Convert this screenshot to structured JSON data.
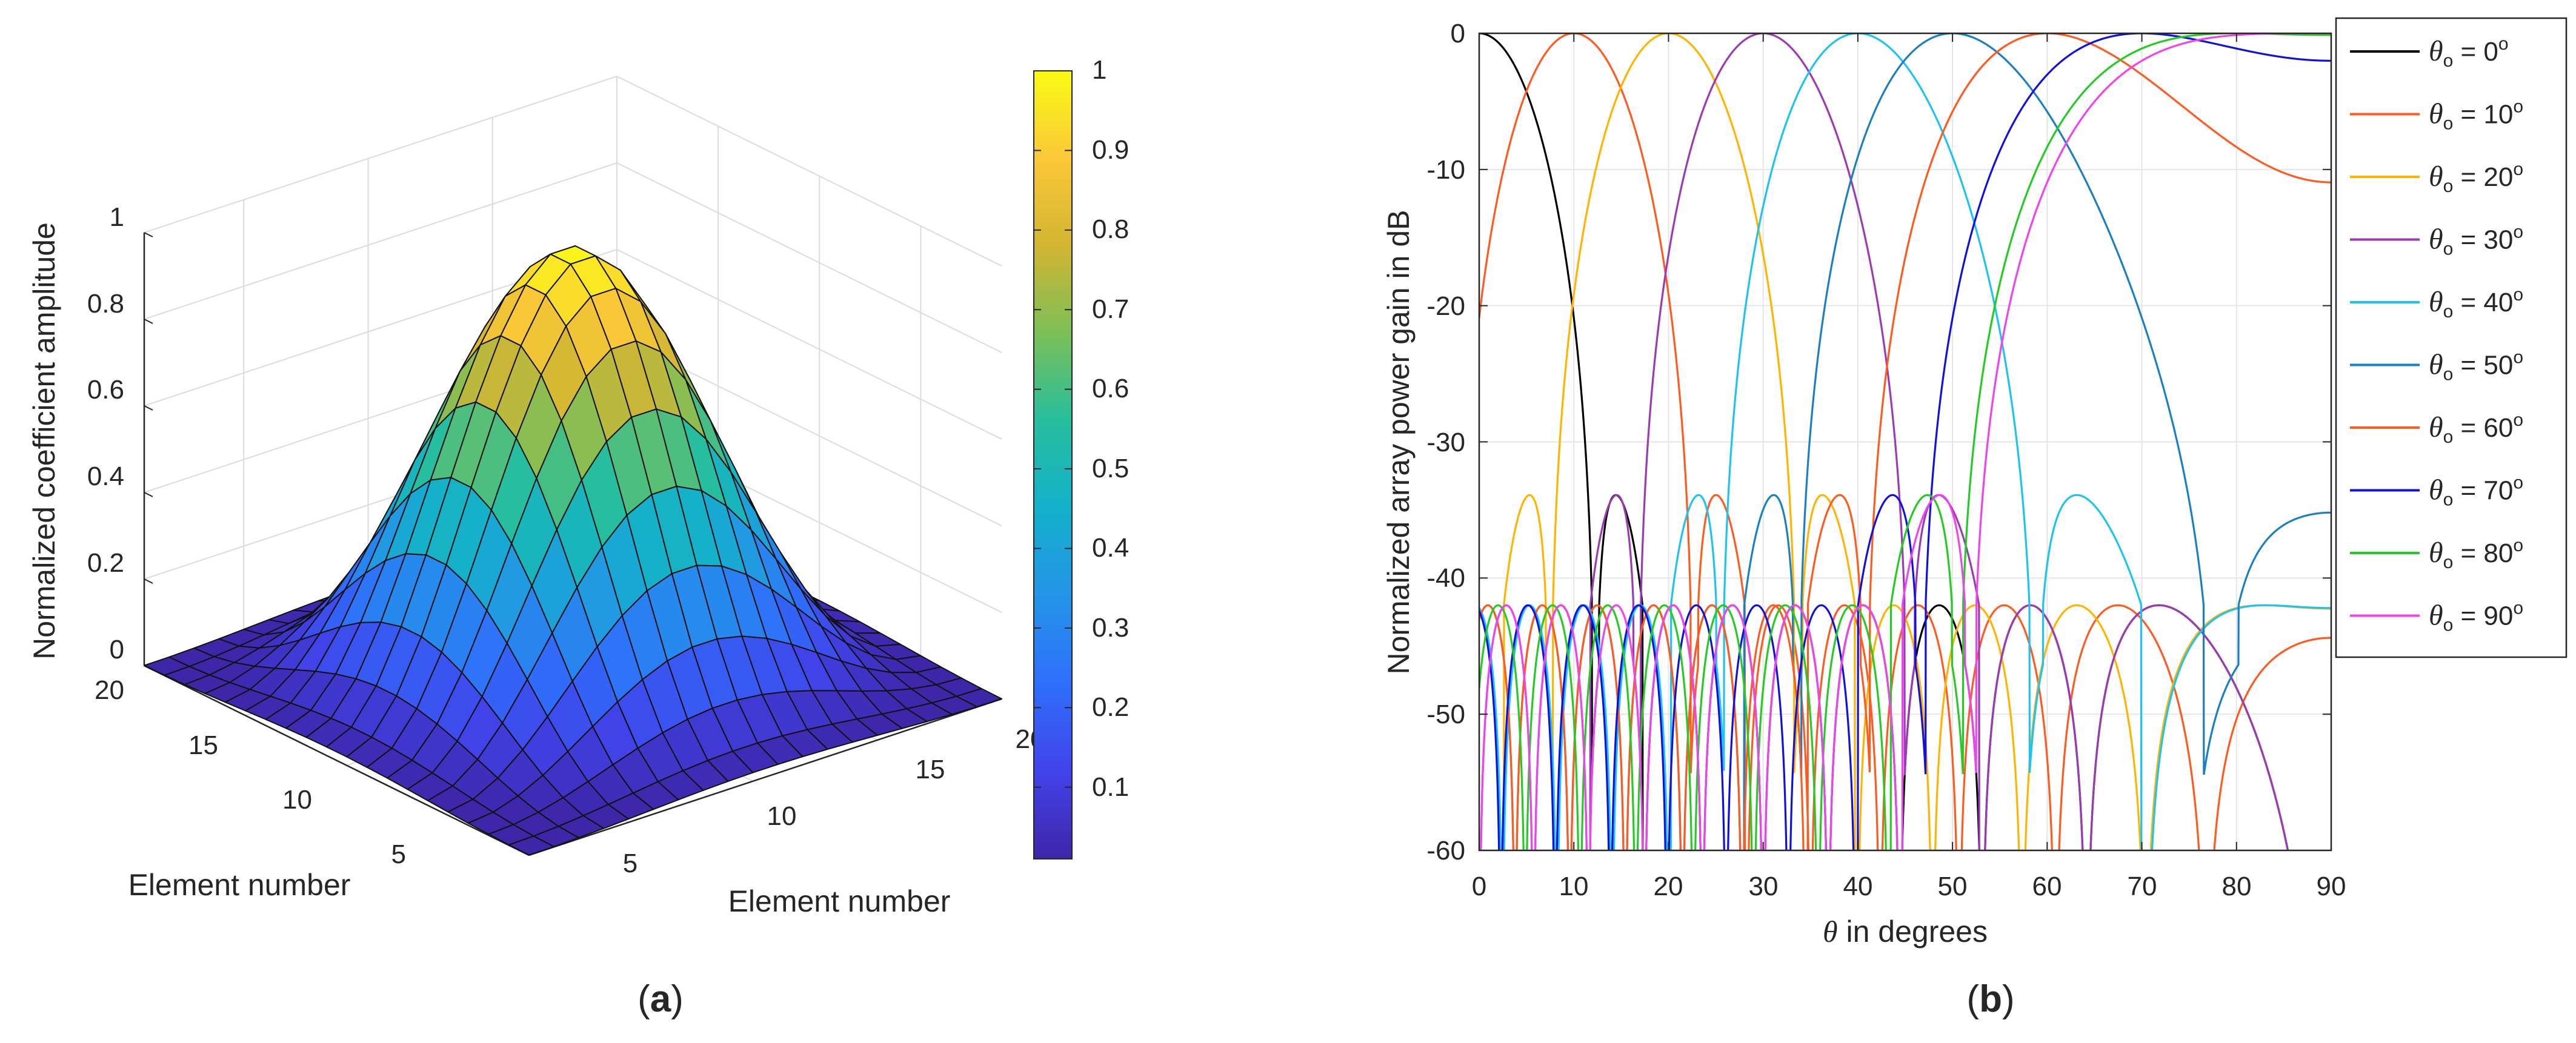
{
  "panel_labels": {
    "a_open": "(",
    "a": "a",
    "a_close": ")",
    "b_open": "(",
    "b": "b",
    "b_close": ")"
  },
  "chart_data": [
    {
      "id": "a",
      "type": "surface3d",
      "title": "",
      "zlabel": "Normalized coefficient amplitude",
      "xlabel": "Element number",
      "ylabel": "Element number",
      "x_ticks": [
        "5",
        "10",
        "15",
        "20"
      ],
      "y_ticks": [
        "5",
        "10",
        "15",
        "20"
      ],
      "z_ticks": [
        "0",
        "0.2",
        "0.4",
        "0.6",
        "0.8",
        "1"
      ],
      "elements_per_axis": 20,
      "zlim": [
        0,
        1
      ],
      "peak": 1,
      "edge_value": 0.02,
      "colormap": "parula",
      "colorbar": {
        "ticks": [
          "0.1",
          "0.2",
          "0.3",
          "0.4",
          "0.5",
          "0.6",
          "0.7",
          "0.8",
          "0.9",
          "1"
        ],
        "range": [
          0.01,
          1
        ],
        "colors": [
          "#3e26a8",
          "#4143ea",
          "#2f6ffb",
          "#2494e8",
          "#14b0cb",
          "#26be9e",
          "#7cbf58",
          "#d2b532",
          "#fbc838",
          "#f9fb15"
        ]
      }
    },
    {
      "id": "b",
      "type": "line",
      "title": "",
      "xlabel_symbol": "θ",
      "xlabel": " in degrees",
      "ylabel": "Normalized array power gain in dB",
      "xlim": [
        0,
        90
      ],
      "ylim": [
        -60,
        0
      ],
      "x_ticks": [
        0,
        10,
        20,
        30,
        40,
        50,
        60,
        70,
        80,
        90
      ],
      "y_ticks": [
        0,
        -10,
        -20,
        -30,
        -40,
        -50,
        -60
      ],
      "grid": true,
      "legend_position": "outside-right",
      "series": [
        {
          "name": "θo = 0°",
          "legend_sym": "θ",
          "legend_sub": "o",
          "legend_eq": " = 0",
          "legend_deg": "o",
          "steer_deg": 0,
          "color": "#000000"
        },
        {
          "name": "θo = 10°",
          "legend_sym": "θ",
          "legend_sub": "o",
          "legend_eq": " = 10",
          "legend_deg": "o",
          "steer_deg": 10,
          "color": "#ff5a1f"
        },
        {
          "name": "θo = 20°",
          "legend_sym": "θ",
          "legend_sub": "o",
          "legend_eq": " = 20",
          "legend_deg": "o",
          "steer_deg": 20,
          "color": "#ffb400"
        },
        {
          "name": "θo = 30°",
          "legend_sym": "θ",
          "legend_sub": "o",
          "legend_eq": " = 30",
          "legend_deg": "o",
          "steer_deg": 30,
          "color": "#9b3ab4"
        },
        {
          "name": "θo = 40°",
          "legend_sym": "θ",
          "legend_sub": "o",
          "legend_eq": " = 40",
          "legend_deg": "o",
          "steer_deg": 40,
          "color": "#1cc4ef"
        },
        {
          "name": "θo = 50°",
          "legend_sym": "θ",
          "legend_sub": "o",
          "legend_eq": " = 50",
          "legend_deg": "o",
          "steer_deg": 50,
          "color": "#1a7fc4"
        },
        {
          "name": "θo = 60°",
          "legend_sym": "θ",
          "legend_sub": "o",
          "legend_eq": " = 60",
          "legend_deg": "o",
          "steer_deg": 60,
          "color": "#ff5a1f"
        },
        {
          "name": "θo = 70°",
          "legend_sym": "θ",
          "legend_sub": "o",
          "legend_eq": " = 70",
          "legend_deg": "o",
          "steer_deg": 70,
          "color": "#1010e0"
        },
        {
          "name": "θo = 80°",
          "legend_sym": "θ",
          "legend_sub": "o",
          "legend_eq": " = 80",
          "legend_deg": "o",
          "steer_deg": 80,
          "color": "#22cc22"
        },
        {
          "name": "θo = 90°",
          "legend_sym": "θ",
          "legend_sub": "o",
          "legend_eq": " = 90",
          "legend_deg": "o",
          "steer_deg": 90,
          "color": "#ee44ee"
        }
      ]
    }
  ]
}
